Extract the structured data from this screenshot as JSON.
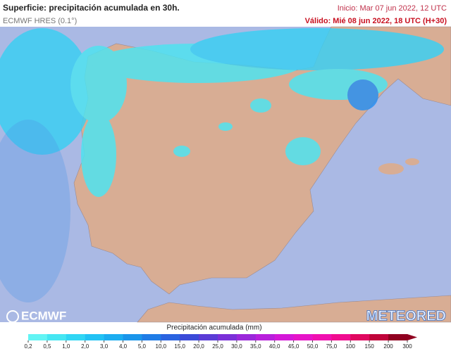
{
  "header": {
    "title": "Superficie: precipitación acumulada en 30h.",
    "model": "ECMWF HRES (0.1°)",
    "init": "Inicio: Mar 07 jun 2022, 12 UTC",
    "valid": "Válido: Mié 08 jun 2022, 18 UTC (H+30)"
  },
  "logos": {
    "left": "ECMWF",
    "right": "METEORED"
  },
  "colorbar": {
    "label": "Precipitación acumulada (mm)",
    "ticks": [
      "0,2",
      "0,5",
      "1,0",
      "2,0",
      "3,0",
      "4,0",
      "5,0",
      "10,0",
      "15,0",
      "20,0",
      "25,0",
      "30,0",
      "35,0",
      "40,0",
      "45,0",
      "50,0",
      "75,0",
      "100",
      "150",
      "200",
      "300"
    ],
    "colors": [
      "#62f4f4",
      "#45e6f2",
      "#30d6f4",
      "#22c2f4",
      "#1cadf0",
      "#1a95ea",
      "#1f7ce6",
      "#2a63e0",
      "#3a4ad8",
      "#5a3cd6",
      "#7a30d8",
      "#9a28da",
      "#b820dc",
      "#d418d8",
      "#e614c8",
      "#f010b0",
      "#f00c90",
      "#e00860",
      "#c0043a",
      "#900020"
    ]
  }
}
